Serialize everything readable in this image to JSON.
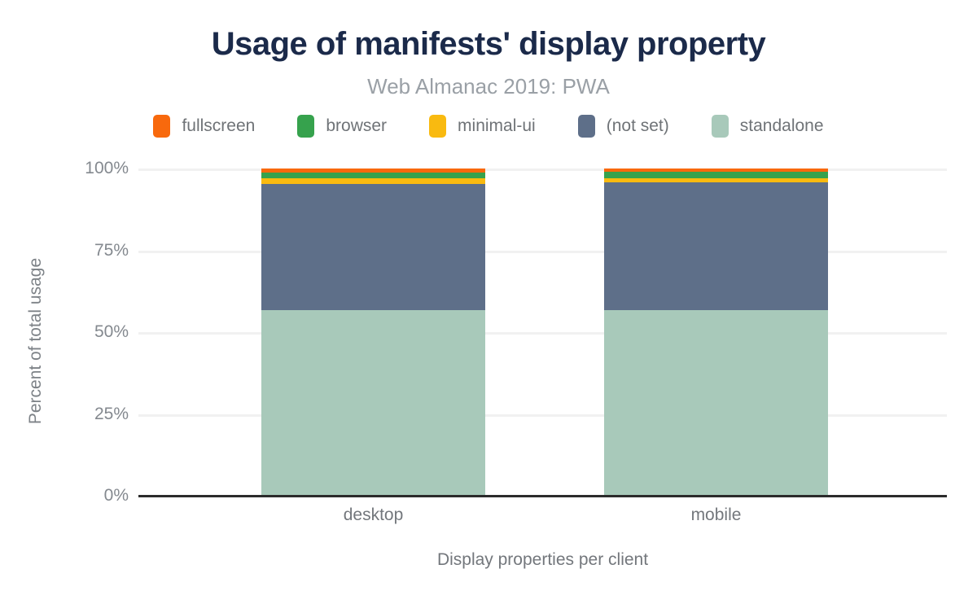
{
  "header": {
    "title": "Usage of manifests' display property",
    "subtitle": "Web Almanac 2019: PWA"
  },
  "chart_data": {
    "type": "bar",
    "stacked": true,
    "title": "Usage of manifests' display property",
    "subtitle": "Web Almanac 2019: PWA",
    "xlabel": "Display properties per client",
    "ylabel": "Percent of total usage",
    "categories": [
      "desktop",
      "mobile"
    ],
    "series": [
      {
        "name": "fullscreen",
        "color": "#f8690d",
        "values": [
          1.3,
          1.0
        ]
      },
      {
        "name": "browser",
        "color": "#36a24d",
        "values": [
          1.6,
          2.0
        ]
      },
      {
        "name": "minimal-ui",
        "color": "#f9ba10",
        "values": [
          1.7,
          1.3
        ]
      },
      {
        "name": "(not set)",
        "color": "#5e6f89",
        "values": [
          38.7,
          39.0
        ]
      },
      {
        "name": "standalone",
        "color": "#a8c9ba",
        "values": [
          56.7,
          56.7
        ]
      }
    ],
    "ylim": [
      0,
      100
    ],
    "yticks": [
      {
        "label": "0%",
        "value": 0
      },
      {
        "label": "25%",
        "value": 25
      },
      {
        "label": "50%",
        "value": 50
      },
      {
        "label": "75%",
        "value": 75
      },
      {
        "label": "100%",
        "value": 100
      }
    ],
    "grid": true,
    "legend_position": "top",
    "colors": {
      "title_text": "#1b2a4a",
      "subtitle_text": "#9aa0a6",
      "axis_text": "#84898f",
      "gridline": "#f1f1f1",
      "axis_line": "#2b2b2b",
      "background": "#ffffff"
    }
  }
}
